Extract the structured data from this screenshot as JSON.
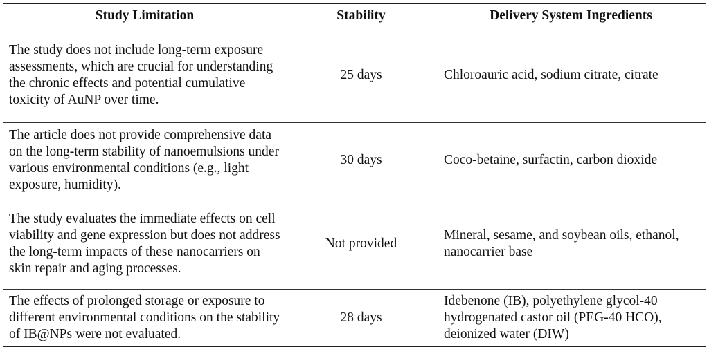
{
  "table": {
    "headers": [
      "Study Limitation",
      "Stability",
      "Delivery System Ingredients"
    ],
    "rows": [
      {
        "limitation": "The study does not include long-term exposure assessments, which are crucial for understanding the chronic effects and potential cumulative toxicity of AuNP over time.",
        "stability": "25 days",
        "ingredients": "Chloroauric acid, sodium citrate, citrate"
      },
      {
        "limitation": "The article does not provide comprehensive data on the long-term stability of nanoemulsions under various environmental conditions (e.g., light exposure, humidity).",
        "stability": "30 days",
        "ingredients": "Coco-betaine, surfactin, carbon dioxide"
      },
      {
        "limitation": "The study evaluates the immediate effects on cell viability and gene expression but does not address the long-term impacts of these nanocarriers on skin repair and aging processes.",
        "stability": "Not provided",
        "ingredients": "Mineral, sesame, and soybean oils, ethanol, nanocarrier base"
      },
      {
        "limitation": "The effects of prolonged storage or exposure to different environmental conditions on the stability of IB@NPs were not evaluated.",
        "stability": "28 days",
        "ingredients": "Idebenone (IB), polyethylene glycol-40 hydrogenated castor oil (PEG-40 HCO), deionized water (DIW)"
      }
    ]
  }
}
